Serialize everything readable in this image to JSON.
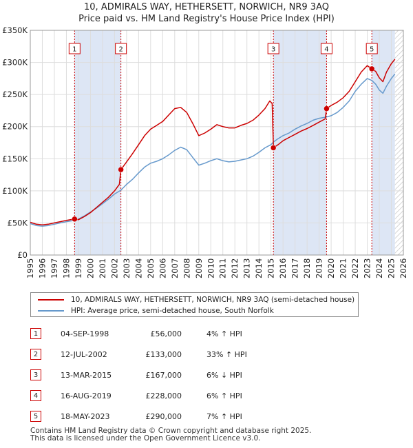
{
  "header": {
    "title_line1": "10, ADMIRALS WAY, HETHERSETT, NORWICH, NR9 3AQ",
    "title_line2": "Price paid vs. HM Land Registry's House Price Index (HPI)"
  },
  "chart_data": {
    "type": "line",
    "x_range": [
      1995,
      2026
    ],
    "y_range": [
      0,
      350000
    ],
    "y_ticks": [
      {
        "value": 0,
        "label": "£0"
      },
      {
        "value": 50000,
        "label": "£50K"
      },
      {
        "value": 100000,
        "label": "£100K"
      },
      {
        "value": 150000,
        "label": "£150K"
      },
      {
        "value": 200000,
        "label": "£200K"
      },
      {
        "value": 250000,
        "label": "£250K"
      },
      {
        "value": 300000,
        "label": "£300K"
      },
      {
        "value": 350000,
        "label": "£350K"
      }
    ],
    "x_ticks": [
      "1995",
      "1996",
      "1997",
      "1998",
      "1999",
      "2000",
      "2001",
      "2002",
      "2003",
      "2004",
      "2005",
      "2006",
      "2007",
      "2008",
      "2009",
      "2010",
      "2011",
      "2012",
      "2013",
      "2014",
      "2015",
      "2016",
      "2017",
      "2018",
      "2019",
      "2020",
      "2021",
      "2022",
      "2023",
      "2024",
      "2025",
      "2026"
    ],
    "grid": true,
    "colors": {
      "price": "#cc0000",
      "hpi": "#6699cc",
      "shade": "#dde6f5",
      "marker_border": "#cc0000"
    },
    "shaded_periods": [
      [
        1998.68,
        2002.53
      ],
      [
        2015.2,
        2019.62
      ],
      [
        2023.38,
        2025.3
      ]
    ],
    "hatched_from": 2025.3,
    "series": [
      {
        "name": "10, ADMIRALS WAY, HETHERSETT, NORWICH, NR9 3AQ (semi-detached house)",
        "points": [
          [
            1995,
            51000
          ],
          [
            1995.5,
            48000
          ],
          [
            1996,
            47000
          ],
          [
            1996.5,
            48000
          ],
          [
            1997,
            50000
          ],
          [
            1997.5,
            52000
          ],
          [
            1998,
            54000
          ],
          [
            1998.68,
            56000
          ],
          [
            1999,
            55000
          ],
          [
            1999.5,
            60000
          ],
          [
            2000,
            66000
          ],
          [
            2000.5,
            74000
          ],
          [
            2001,
            82000
          ],
          [
            2001.5,
            90000
          ],
          [
            2002,
            100000
          ],
          [
            2002.4,
            110000
          ],
          [
            2002.53,
            133000
          ],
          [
            2003,
            145000
          ],
          [
            2003.5,
            158000
          ],
          [
            2004,
            172000
          ],
          [
            2004.5,
            186000
          ],
          [
            2005,
            196000
          ],
          [
            2005.5,
            202000
          ],
          [
            2006,
            208000
          ],
          [
            2006.5,
            218000
          ],
          [
            2007,
            228000
          ],
          [
            2007.5,
            230000
          ],
          [
            2008,
            222000
          ],
          [
            2008.5,
            205000
          ],
          [
            2009,
            186000
          ],
          [
            2009.5,
            190000
          ],
          [
            2010,
            196000
          ],
          [
            2010.5,
            203000
          ],
          [
            2011,
            200000
          ],
          [
            2011.5,
            198000
          ],
          [
            2012,
            198000
          ],
          [
            2012.5,
            202000
          ],
          [
            2013,
            205000
          ],
          [
            2013.5,
            210000
          ],
          [
            2014,
            218000
          ],
          [
            2014.5,
            228000
          ],
          [
            2014.9,
            240000
          ],
          [
            2015.1,
            236000
          ],
          [
            2015.2,
            167000
          ],
          [
            2015.6,
            172000
          ],
          [
            2016,
            178000
          ],
          [
            2016.5,
            183000
          ],
          [
            2017,
            188000
          ],
          [
            2017.5,
            193000
          ],
          [
            2018,
            197000
          ],
          [
            2018.5,
            202000
          ],
          [
            2019,
            207000
          ],
          [
            2019.5,
            212000
          ],
          [
            2019.62,
            228000
          ],
          [
            2020,
            233000
          ],
          [
            2020.5,
            238000
          ],
          [
            2021,
            245000
          ],
          [
            2021.5,
            255000
          ],
          [
            2022,
            270000
          ],
          [
            2022.5,
            285000
          ],
          [
            2023,
            295000
          ],
          [
            2023.38,
            290000
          ],
          [
            2023.7,
            286000
          ],
          [
            2024,
            276000
          ],
          [
            2024.3,
            270000
          ],
          [
            2024.6,
            285000
          ],
          [
            2025,
            298000
          ],
          [
            2025.3,
            305000
          ]
        ]
      },
      {
        "name": "HPI: Average price, semi-detached house, South Norfolk",
        "points": [
          [
            1995,
            49000
          ],
          [
            1995.5,
            46000
          ],
          [
            1996,
            45000
          ],
          [
            1996.5,
            46000
          ],
          [
            1997,
            48000
          ],
          [
            1997.5,
            50000
          ],
          [
            1998,
            52000
          ],
          [
            1998.68,
            54000
          ],
          [
            1999,
            56000
          ],
          [
            1999.5,
            61000
          ],
          [
            2000,
            67000
          ],
          [
            2000.5,
            73000
          ],
          [
            2001,
            80000
          ],
          [
            2001.5,
            87000
          ],
          [
            2002,
            95000
          ],
          [
            2002.53,
            101000
          ],
          [
            2003,
            110000
          ],
          [
            2003.5,
            118000
          ],
          [
            2004,
            128000
          ],
          [
            2004.5,
            137000
          ],
          [
            2005,
            143000
          ],
          [
            2005.5,
            146000
          ],
          [
            2006,
            150000
          ],
          [
            2006.5,
            156000
          ],
          [
            2007,
            163000
          ],
          [
            2007.5,
            168000
          ],
          [
            2008,
            164000
          ],
          [
            2008.5,
            152000
          ],
          [
            2009,
            140000
          ],
          [
            2009.5,
            143000
          ],
          [
            2010,
            147000
          ],
          [
            2010.5,
            150000
          ],
          [
            2011,
            147000
          ],
          [
            2011.5,
            145000
          ],
          [
            2012,
            146000
          ],
          [
            2012.5,
            148000
          ],
          [
            2013,
            150000
          ],
          [
            2013.5,
            154000
          ],
          [
            2014,
            160000
          ],
          [
            2014.5,
            167000
          ],
          [
            2015,
            172000
          ],
          [
            2015.2,
            176000
          ],
          [
            2015.5,
            180000
          ],
          [
            2016,
            186000
          ],
          [
            2016.5,
            190000
          ],
          [
            2017,
            196000
          ],
          [
            2017.5,
            201000
          ],
          [
            2018,
            205000
          ],
          [
            2018.5,
            210000
          ],
          [
            2019,
            213000
          ],
          [
            2019.62,
            215000
          ],
          [
            2020,
            217000
          ],
          [
            2020.5,
            222000
          ],
          [
            2021,
            230000
          ],
          [
            2021.5,
            240000
          ],
          [
            2022,
            255000
          ],
          [
            2022.5,
            266000
          ],
          [
            2023,
            275000
          ],
          [
            2023.38,
            272000
          ],
          [
            2023.7,
            266000
          ],
          [
            2024,
            257000
          ],
          [
            2024.3,
            252000
          ],
          [
            2024.6,
            263000
          ],
          [
            2025,
            275000
          ],
          [
            2025.3,
            282000
          ]
        ]
      }
    ],
    "sales_markers": [
      {
        "n": "1",
        "x": 1998.68,
        "y": 56000
      },
      {
        "n": "2",
        "x": 2002.53,
        "y": 133000
      },
      {
        "n": "3",
        "x": 2015.2,
        "y": 167000
      },
      {
        "n": "4",
        "x": 2019.62,
        "y": 228000
      },
      {
        "n": "5",
        "x": 2023.38,
        "y": 290000
      }
    ]
  },
  "legend": {
    "price_label": "10, ADMIRALS WAY, HETHERSETT, NORWICH, NR9 3AQ (semi-detached house)",
    "hpi_label": "HPI: Average price, semi-detached house, South Norfolk"
  },
  "sales": [
    {
      "n": "1",
      "date": "04-SEP-1998",
      "price": "£56,000",
      "hpi": "4% ↑ HPI"
    },
    {
      "n": "2",
      "date": "12-JUL-2002",
      "price": "£133,000",
      "hpi": "33% ↑ HPI"
    },
    {
      "n": "3",
      "date": "13-MAR-2015",
      "price": "£167,000",
      "hpi": "6% ↓ HPI"
    },
    {
      "n": "4",
      "date": "16-AUG-2019",
      "price": "£228,000",
      "hpi": "6% ↑ HPI"
    },
    {
      "n": "5",
      "date": "18-MAY-2023",
      "price": "£290,000",
      "hpi": "7% ↑ HPI"
    }
  ],
  "footer": {
    "line1": "Contains HM Land Registry data © Crown copyright and database right 2025.",
    "line2": "This data is licensed under the Open Government Licence v3.0."
  }
}
